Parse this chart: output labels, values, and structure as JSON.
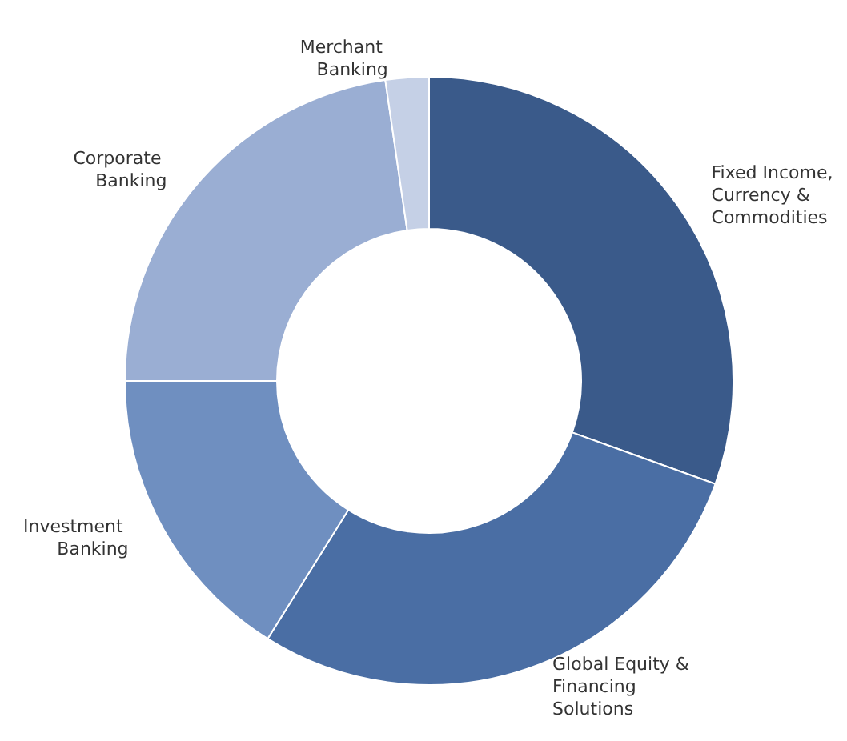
{
  "chart_data": {
    "type": "donut",
    "categories": [
      "Fixed Income, Currency & Commodities",
      "Global Equity & Financing Solutions",
      "Investment Banking",
      "Corporate Banking",
      "Merchant Banking"
    ],
    "values": [
      30.5,
      28.4,
      16.1,
      22.7,
      2.3
    ],
    "colors": [
      "#3a5a8a",
      "#4a6ea4",
      "#6f8fc0",
      "#9aaed3",
      "#c5d0e6"
    ],
    "legend": false
  }
}
